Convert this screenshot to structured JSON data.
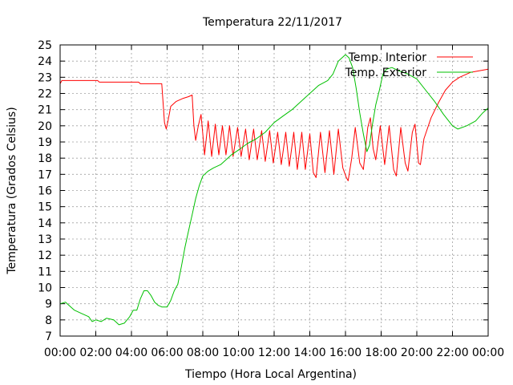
{
  "chart_data": {
    "type": "line",
    "title": "Temperatura 22/11/2017",
    "xlabel": "Tiempo (Hora Local Argentina)",
    "ylabel": "Temperatura (Grados Celsius)",
    "x_unit": "hours",
    "xlim": [
      0,
      24
    ],
    "ylim": [
      7,
      25
    ],
    "x_ticks": [
      0,
      2,
      4,
      6,
      8,
      10,
      12,
      14,
      16,
      18,
      20,
      22,
      24
    ],
    "x_tick_labels": [
      "00:00",
      "02:00",
      "04:00",
      "06:00",
      "08:00",
      "10:00",
      "12:00",
      "14:00",
      "16:00",
      "18:00",
      "20:00",
      "22:00",
      "00:00"
    ],
    "y_ticks": [
      7,
      8,
      9,
      10,
      11,
      12,
      13,
      14,
      15,
      16,
      17,
      18,
      19,
      20,
      21,
      22,
      23,
      24,
      25
    ],
    "grid": true,
    "legend_position": "top-right",
    "series": [
      {
        "name": "Temp. Interior",
        "color": "#ff0000",
        "points": [
          [
            0,
            22.6
          ],
          [
            0.1,
            22.8
          ],
          [
            2.1,
            22.8
          ],
          [
            2.2,
            22.7
          ],
          [
            4.4,
            22.7
          ],
          [
            4.5,
            22.6
          ],
          [
            5.7,
            22.6
          ],
          [
            5.85,
            20.2
          ],
          [
            5.95,
            19.8
          ],
          [
            6.05,
            20.3
          ],
          [
            6.2,
            21.2
          ],
          [
            6.5,
            21.5
          ],
          [
            6.9,
            21.7
          ],
          [
            7.2,
            21.8
          ],
          [
            7.4,
            21.9
          ],
          [
            7.5,
            20.0
          ],
          [
            7.6,
            19.1
          ],
          [
            7.75,
            20.0
          ],
          [
            7.9,
            20.7
          ],
          [
            8.0,
            19.5
          ],
          [
            8.1,
            18.2
          ],
          [
            8.3,
            20.3
          ],
          [
            8.5,
            18.1
          ],
          [
            8.7,
            20.1
          ],
          [
            8.9,
            18.2
          ],
          [
            9.1,
            20.0
          ],
          [
            9.3,
            18.2
          ],
          [
            9.5,
            20.0
          ],
          [
            9.7,
            18.1
          ],
          [
            9.95,
            19.9
          ],
          [
            10.15,
            18.1
          ],
          [
            10.4,
            19.8
          ],
          [
            10.6,
            17.9
          ],
          [
            10.85,
            19.8
          ],
          [
            11.05,
            17.9
          ],
          [
            11.3,
            19.7
          ],
          [
            11.5,
            17.8
          ],
          [
            11.75,
            19.7
          ],
          [
            11.95,
            17.7
          ],
          [
            12.2,
            19.6
          ],
          [
            12.4,
            17.6
          ],
          [
            12.65,
            19.6
          ],
          [
            12.85,
            17.5
          ],
          [
            13.1,
            19.6
          ],
          [
            13.3,
            17.3
          ],
          [
            13.55,
            19.6
          ],
          [
            13.75,
            17.3
          ],
          [
            14.0,
            19.5
          ],
          [
            14.2,
            17.1
          ],
          [
            14.35,
            16.8
          ],
          [
            14.6,
            19.6
          ],
          [
            14.85,
            17.1
          ],
          [
            15.1,
            19.7
          ],
          [
            15.35,
            17.0
          ],
          [
            15.6,
            19.8
          ],
          [
            15.85,
            17.4
          ],
          [
            16.05,
            16.8
          ],
          [
            16.15,
            16.6
          ],
          [
            16.35,
            18.0
          ],
          [
            16.55,
            19.9
          ],
          [
            16.8,
            17.7
          ],
          [
            17.0,
            17.3
          ],
          [
            17.25,
            19.9
          ],
          [
            17.4,
            20.5
          ],
          [
            17.55,
            18.6
          ],
          [
            17.7,
            17.9
          ],
          [
            17.95,
            20.0
          ],
          [
            18.2,
            17.6
          ],
          [
            18.45,
            20.0
          ],
          [
            18.7,
            17.3
          ],
          [
            18.85,
            16.9
          ],
          [
            19.1,
            19.9
          ],
          [
            19.35,
            17.7
          ],
          [
            19.5,
            17.2
          ],
          [
            19.75,
            19.6
          ],
          [
            19.9,
            20.1
          ],
          [
            20.1,
            17.7
          ],
          [
            20.2,
            17.6
          ],
          [
            20.4,
            19.2
          ],
          [
            20.8,
            20.5
          ],
          [
            21.2,
            21.4
          ],
          [
            21.6,
            22.2
          ],
          [
            22.0,
            22.7
          ],
          [
            22.4,
            23.0
          ],
          [
            23.0,
            23.3
          ],
          [
            23.5,
            23.4
          ],
          [
            24,
            23.5
          ]
        ]
      },
      {
        "name": "Temp. Exterior",
        "color": "#00c000",
        "points": [
          [
            0,
            9.0
          ],
          [
            0.3,
            9.1
          ],
          [
            0.5,
            8.9
          ],
          [
            0.8,
            8.6
          ],
          [
            1.2,
            8.4
          ],
          [
            1.6,
            8.2
          ],
          [
            1.8,
            7.9
          ],
          [
            2.0,
            8.0
          ],
          [
            2.3,
            7.9
          ],
          [
            2.6,
            8.1
          ],
          [
            3.0,
            8.0
          ],
          [
            3.3,
            7.7
          ],
          [
            3.6,
            7.8
          ],
          [
            3.9,
            8.2
          ],
          [
            4.1,
            8.6
          ],
          [
            4.3,
            8.6
          ],
          [
            4.5,
            9.3
          ],
          [
            4.7,
            9.8
          ],
          [
            4.9,
            9.8
          ],
          [
            5.1,
            9.5
          ],
          [
            5.3,
            9.1
          ],
          [
            5.5,
            8.9
          ],
          [
            5.7,
            8.8
          ],
          [
            6.0,
            8.8
          ],
          [
            6.2,
            9.2
          ],
          [
            6.4,
            9.8
          ],
          [
            6.6,
            10.2
          ],
          [
            6.8,
            11.3
          ],
          [
            7.0,
            12.5
          ],
          [
            7.2,
            13.5
          ],
          [
            7.4,
            14.5
          ],
          [
            7.6,
            15.5
          ],
          [
            7.8,
            16.3
          ],
          [
            8.0,
            16.9
          ],
          [
            8.3,
            17.2
          ],
          [
            8.6,
            17.4
          ],
          [
            9.0,
            17.6
          ],
          [
            9.3,
            17.9
          ],
          [
            9.6,
            18.2
          ],
          [
            10.0,
            18.5
          ],
          [
            10.5,
            18.9
          ],
          [
            11.0,
            19.2
          ],
          [
            11.5,
            19.6
          ],
          [
            12.0,
            20.2
          ],
          [
            12.5,
            20.6
          ],
          [
            13.0,
            21.0
          ],
          [
            13.5,
            21.5
          ],
          [
            14.0,
            22.0
          ],
          [
            14.5,
            22.5
          ],
          [
            15.0,
            22.8
          ],
          [
            15.3,
            23.2
          ],
          [
            15.6,
            24.0
          ],
          [
            16.0,
            24.4
          ],
          [
            16.2,
            24.2
          ],
          [
            16.4,
            23.6
          ],
          [
            16.6,
            22.3
          ],
          [
            16.8,
            20.8
          ],
          [
            17.0,
            19.5
          ],
          [
            17.2,
            18.4
          ],
          [
            17.35,
            18.8
          ],
          [
            17.5,
            20.0
          ],
          [
            17.7,
            21.3
          ],
          [
            17.9,
            22.2
          ],
          [
            18.1,
            23.2
          ],
          [
            18.3,
            23.5
          ],
          [
            18.6,
            23.6
          ],
          [
            19.0,
            23.4
          ],
          [
            19.5,
            23.2
          ],
          [
            20.0,
            22.9
          ],
          [
            20.5,
            22.2
          ],
          [
            21.0,
            21.5
          ],
          [
            21.5,
            20.7
          ],
          [
            22.0,
            20.0
          ],
          [
            22.3,
            19.8
          ],
          [
            22.8,
            20.0
          ],
          [
            23.3,
            20.3
          ],
          [
            23.7,
            20.8
          ],
          [
            24,
            21.1
          ]
        ]
      }
    ]
  }
}
